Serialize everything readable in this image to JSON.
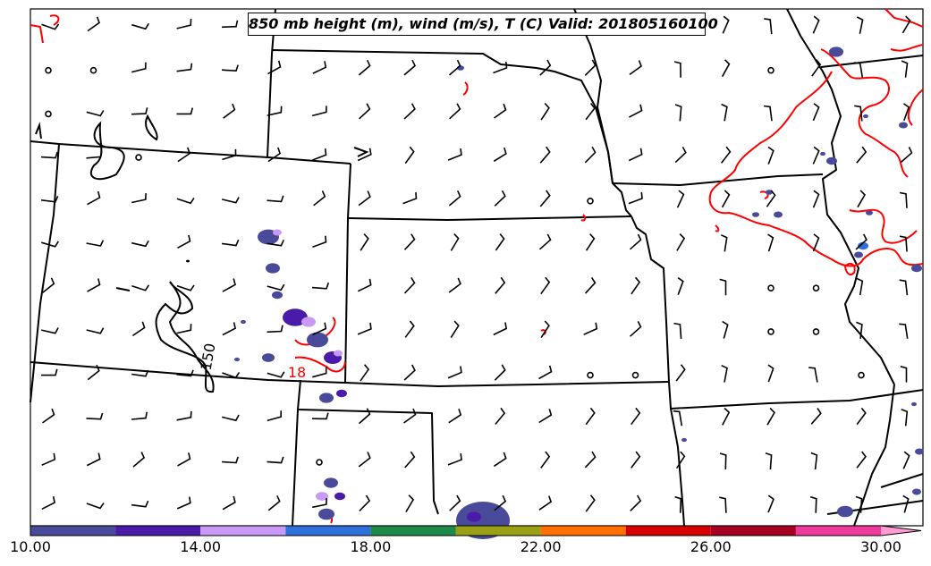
{
  "title": "850 mb height (m), wind (m/s), T (C) Valid: 201805160100",
  "contour_labels": {
    "height": "150",
    "temperature": "18"
  },
  "colorbar": {
    "ticks": [
      "10.00",
      "14.00",
      "18.00",
      "22.00",
      "26.00",
      "30.00"
    ],
    "tick_values": [
      10,
      14,
      18,
      22,
      26,
      30
    ],
    "range": [
      10,
      31
    ],
    "bins": [
      {
        "from": 10,
        "to": 12,
        "color": "#4a4a9a"
      },
      {
        "from": 12,
        "to": 14,
        "color": "#4a1aa8"
      },
      {
        "from": 14,
        "to": 16,
        "color": "#c99af5"
      },
      {
        "from": 16,
        "to": 18,
        "color": "#2e6fdc"
      },
      {
        "from": 18,
        "to": 20,
        "color": "#1d8a4a"
      },
      {
        "from": 20,
        "to": 22,
        "color": "#9aa015"
      },
      {
        "from": 22,
        "to": 24,
        "color": "#ff7000"
      },
      {
        "from": 24,
        "to": 26,
        "color": "#d60000"
      },
      {
        "from": 26,
        "to": 28,
        "color": "#a60022"
      },
      {
        "from": 28,
        "to": 30,
        "color": "#ef3c9c"
      },
      {
        "from": 30,
        "to": 31,
        "color": "#ff9ad2"
      }
    ]
  },
  "colors": {
    "state_borders": "#000000",
    "temperature_contour": "#ff0000",
    "height_contour": "#000000",
    "wind_barbs": "#000000"
  }
}
